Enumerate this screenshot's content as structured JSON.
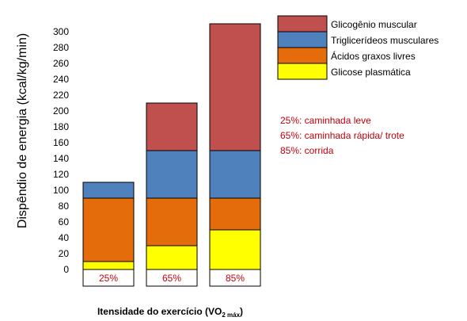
{
  "chart_data": {
    "type": "bar",
    "stacked": true,
    "title": "",
    "ylabel": "Dispêndio de energia (kcal/kg/min)",
    "xlabel": {
      "main": "Itensidade do exercício (VO",
      "subscript": "2 máx",
      "close": ")"
    },
    "ylim": [
      0,
      300
    ],
    "yticks": [
      0,
      20,
      40,
      60,
      80,
      100,
      120,
      140,
      160,
      180,
      200,
      220,
      240,
      260,
      280,
      300
    ],
    "grid": false,
    "legend_position": "top-right",
    "categories": [
      "25%",
      "65%",
      "85%"
    ],
    "series": [
      {
        "name": "Glicose plasmática",
        "color": "#FFFF00",
        "values": [
          10,
          30,
          50
        ]
      },
      {
        "name": "Ácidos graxos livres",
        "color": "#E46C0A",
        "values": [
          80,
          60,
          40
        ]
      },
      {
        "name": "Triglicerídeos musculares",
        "color": "#4F81BD",
        "values": [
          20,
          60,
          60
        ]
      },
      {
        "name": "Glicogênio muscular",
        "color": "#C0504D",
        "values": [
          0,
          60,
          160
        ]
      }
    ],
    "legend_order": [
      3,
      2,
      1,
      0
    ],
    "annotations": [
      "25%: caminhada leve",
      "65%: caminhada rápida/ trote",
      "85%: corrida"
    ],
    "annotation_color": "#C0000C",
    "category_label_color": "#C0000C"
  }
}
